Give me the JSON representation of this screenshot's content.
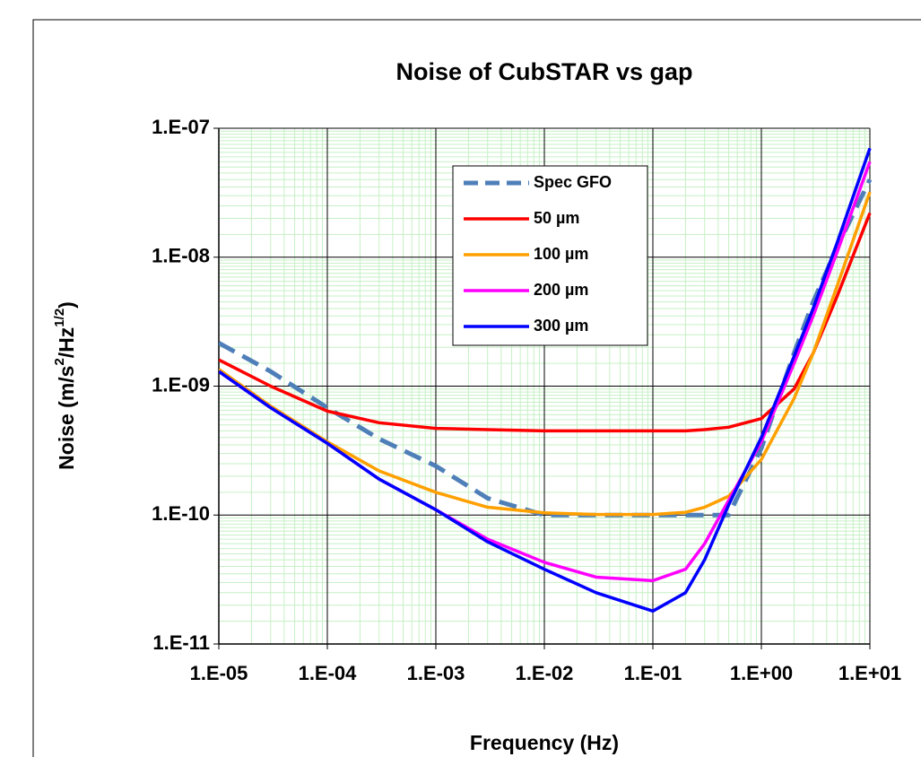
{
  "chart_data": {
    "type": "line",
    "title": "Noise of CubSTAR vs gap",
    "xlabel": "Frequency (Hz)",
    "ylabel": [
      "Noise (m/s",
      "2",
      "/Hz",
      "1/2",
      ")"
    ],
    "log_x": true,
    "log_y": true,
    "grid": true,
    "minor_grid": true,
    "xlim": [
      1e-05,
      10
    ],
    "ylim": [
      1e-11,
      1e-07
    ],
    "xticks": [
      {
        "value": 1e-05,
        "label": "1.E-05"
      },
      {
        "value": 0.0001,
        "label": "1.E-04"
      },
      {
        "value": 0.001,
        "label": "1.E-03"
      },
      {
        "value": 0.01,
        "label": "1.E-02"
      },
      {
        "value": 0.1,
        "label": "1.E-01"
      },
      {
        "value": 1,
        "label": "1.E+00"
      },
      {
        "value": 10,
        "label": "1.E+01"
      }
    ],
    "yticks": [
      {
        "value": 1e-11,
        "label": "1.E-11"
      },
      {
        "value": 1e-10,
        "label": "1.E-10"
      },
      {
        "value": 1e-09,
        "label": "1.E-09"
      },
      {
        "value": 1e-08,
        "label": "1.E-08"
      },
      {
        "value": 1e-07,
        "label": "1.E-07"
      }
    ],
    "x": [
      1e-05,
      3e-05,
      0.0001,
      0.0003,
      0.001,
      0.003,
      0.01,
      0.03,
      0.1,
      0.2,
      0.3,
      0.5,
      1,
      2,
      3,
      5,
      10
    ],
    "series": [
      {
        "name": "Spec GFO",
        "color": "#4f7fb8",
        "dashed": true,
        "values": [
          2.16e-09,
          1.3e-09,
          6.8e-10,
          3.9e-10,
          2.4e-10,
          1.35e-10,
          1e-10,
          1e-10,
          1e-10,
          1e-10,
          1e-10,
          1e-10,
          3.3e-10,
          1.8e-09,
          4.5e-09,
          1.2e-08,
          4e-08
        ]
      },
      {
        "name": "50 µm",
        "color": "#ff0000",
        "values": [
          1.6e-09,
          1e-09,
          6.4e-10,
          5.2e-10,
          4.7e-10,
          4.6e-10,
          4.5e-10,
          4.5e-10,
          4.5e-10,
          4.5e-10,
          4.6e-10,
          4.8e-10,
          5.6e-10,
          9.5e-10,
          1.8e-09,
          5e-09,
          2.2e-08
        ]
      },
      {
        "name": "100 µm",
        "color": "#ffa000",
        "values": [
          1.35e-09,
          7e-10,
          3.7e-10,
          2.2e-10,
          1.5e-10,
          1.15e-10,
          1.04e-10,
          1.01e-10,
          1.01e-10,
          1.05e-10,
          1.15e-10,
          1.4e-10,
          2.7e-10,
          8e-10,
          1.8e-09,
          6e-09,
          3.2e-08
        ]
      },
      {
        "name": "200 µm",
        "color": "#ff00ff",
        "values": [
          1.3e-09,
          6.8e-10,
          3.6e-10,
          1.9e-10,
          1.1e-10,
          6.5e-11,
          4.3e-11,
          3.3e-11,
          3.1e-11,
          3.8e-11,
          6e-11,
          1.3e-10,
          3.7e-10,
          1.5e-09,
          3.5e-09,
          1.1e-08,
          5.5e-08
        ]
      },
      {
        "name": "300 µm",
        "color": "#0000ff",
        "values": [
          1.3e-09,
          6.8e-10,
          3.6e-10,
          1.9e-10,
          1.1e-10,
          6.2e-11,
          3.8e-11,
          2.5e-11,
          1.8e-11,
          2.5e-11,
          4.5e-11,
          1.2e-10,
          4e-10,
          1.7e-09,
          4e-09,
          1.3e-08,
          7e-08
        ]
      }
    ]
  }
}
